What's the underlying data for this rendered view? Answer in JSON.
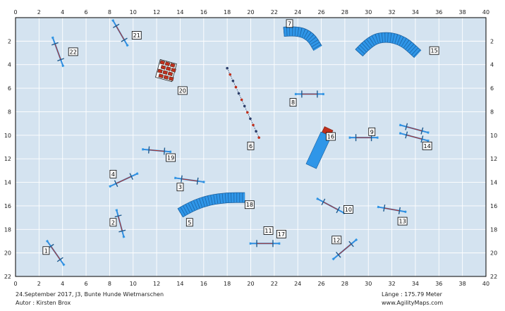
{
  "footer": {
    "event": "24.September 2017, J3, Bunte Hunde Wietmarschen",
    "author": "Autor : Kirsten Brox",
    "length": "Länge : 175.79 Meter",
    "website": "www.AgilityMaps.com"
  },
  "grid": {
    "x_max": 40,
    "y_max": 22,
    "x_ticks": [
      "0",
      "2",
      "4",
      "6",
      "8",
      "10",
      "12",
      "14",
      "16",
      "18",
      "20",
      "22",
      "24",
      "26",
      "28",
      "30",
      "32",
      "34",
      "36",
      "38",
      "40"
    ],
    "y_ticks": [
      "2",
      "4",
      "6",
      "8",
      "10",
      "12",
      "14",
      "16",
      "18",
      "20",
      "22"
    ],
    "colors": {
      "field": "#d4e3f0",
      "grid": "#ffffff",
      "border": "#000000"
    }
  },
  "colors": {
    "bar": "#2f8de0",
    "pole": "#1f5b8f",
    "wing": "#3aa0e8",
    "tunnel": "#2f96e8",
    "tunnel_stroke": "#1a5f9e",
    "red": "#c0301c",
    "weave": "#2c3e6a"
  },
  "obstacles": [
    {
      "id": "1",
      "label": "1",
      "kind": "hurdle",
      "cx": 3.4,
      "cy": 20.0,
      "len": 2.5,
      "angle": 55
    },
    {
      "id": "2",
      "label": "2",
      "kind": "hurdle",
      "cx": 8.9,
      "cy": 17.5,
      "len": 2.4,
      "angle": 75
    },
    {
      "id": "4",
      "label": "4",
      "kind": "hurdle",
      "cx": 9.2,
      "cy": 13.8,
      "len": 2.6,
      "angle": -25
    },
    {
      "id": "3",
      "label": "3",
      "kind": "hurdle",
      "cx": 14.8,
      "cy": 13.8,
      "len": 2.5,
      "angle": 8
    },
    {
      "id": "19",
      "label": "19",
      "kind": "hurdle",
      "cx": 12.0,
      "cy": 11.3,
      "len": 2.4,
      "angle": 5
    },
    {
      "id": "21",
      "label": "21",
      "kind": "hurdle",
      "cx": 8.9,
      "cy": 1.3,
      "len": 2.5,
      "angle": 60
    },
    {
      "id": "22",
      "label": "22",
      "kind": "hurdle",
      "cx": 3.6,
      "cy": 2.9,
      "len": 2.6,
      "angle": 70
    },
    {
      "id": "8",
      "label": "8",
      "kind": "hurdle",
      "cx": 25.0,
      "cy": 6.5,
      "len": 2.4,
      "angle": 0
    },
    {
      "id": "9",
      "label": "9",
      "kind": "hurdle",
      "cx": 29.6,
      "cy": 10.2,
      "len": 2.4,
      "angle": 0
    },
    {
      "id": "14",
      "label": "14",
      "kind": "double",
      "cx": 33.9,
      "cy": 9.8,
      "len": 2.5,
      "angle": 15
    },
    {
      "id": "10",
      "label": "10",
      "kind": "hurdle",
      "cx": 26.8,
      "cy": 16.0,
      "len": 2.6,
      "angle": 28
    },
    {
      "id": "13",
      "label": "13",
      "kind": "hurdle",
      "cx": 32.0,
      "cy": 16.3,
      "len": 2.4,
      "angle": 10
    },
    {
      "id": "17",
      "label": "17",
      "kind": "hurdle",
      "cx": 21.2,
      "cy": 19.2,
      "len": 2.5,
      "angle": 0
    },
    {
      "id": "12",
      "label": "12",
      "kind": "hurdle",
      "cx": 28.0,
      "cy": 19.7,
      "len": 2.6,
      "angle": -40
    },
    {
      "id": "16",
      "label": "16",
      "kind": "aframe",
      "cx": 25.9,
      "cy": 11.0
    },
    {
      "id": "20",
      "label": "20",
      "kind": "wall",
      "cx": 12.8,
      "cy": 4.5
    },
    {
      "id": "6",
      "label": "6",
      "kind": "weave",
      "cx": 19.5,
      "cy": 7.2
    },
    {
      "id": "5",
      "label": "5",
      "kind": "tunnel"
    },
    {
      "id": "7",
      "label": "7",
      "kind": "tunnel"
    },
    {
      "id": "15",
      "label": "15",
      "kind": "tunnel"
    }
  ],
  "tunnels": {
    "5": {
      "path": [
        [
          14.0,
          16.6
        ],
        [
          15.0,
          16.0
        ],
        [
          16.5,
          15.5
        ],
        [
          18.0,
          15.3
        ],
        [
          19.5,
          15.3
        ]
      ],
      "width": 0.8
    },
    "7": {
      "path": [
        [
          22.8,
          1.2
        ],
        [
          24.0,
          1.1
        ],
        [
          25.1,
          1.6
        ],
        [
          25.7,
          2.6
        ]
      ],
      "width": 0.75
    },
    "15": {
      "path": [
        [
          29.2,
          3.0
        ],
        [
          30.2,
          1.9
        ],
        [
          31.6,
          1.6
        ],
        [
          33.0,
          2.0
        ],
        [
          34.2,
          3.1
        ]
      ],
      "width": 0.8
    }
  },
  "labels": [
    {
      "text": "1",
      "x": 2.6,
      "y": 19.8
    },
    {
      "text": "2",
      "x": 8.3,
      "y": 17.4
    },
    {
      "text": "3",
      "x": 14.0,
      "y": 14.4
    },
    {
      "text": "4",
      "x": 8.3,
      "y": 13.3
    },
    {
      "text": "5",
      "x": 14.8,
      "y": 17.4
    },
    {
      "text": "6",
      "x": 20.0,
      "y": 10.9
    },
    {
      "text": "7",
      "x": 23.3,
      "y": 0.5
    },
    {
      "text": "8",
      "x": 23.6,
      "y": 7.2
    },
    {
      "text": "9",
      "x": 30.3,
      "y": 9.7
    },
    {
      "text": "10",
      "x": 28.3,
      "y": 16.3
    },
    {
      "text": "12",
      "x": 27.3,
      "y": 18.9
    },
    {
      "text": "13",
      "x": 32.9,
      "y": 17.3
    },
    {
      "text": "14",
      "x": 35.0,
      "y": 10.9
    },
    {
      "text": "15",
      "x": 35.6,
      "y": 2.8
    },
    {
      "text": "16",
      "x": 26.8,
      "y": 10.1
    },
    {
      "text": "17",
      "x": 22.6,
      "y": 18.4
    },
    {
      "text": "18",
      "x": 19.9,
      "y": 15.9
    },
    {
      "text": "19",
      "x": 13.2,
      "y": 11.9
    },
    {
      "text": "20",
      "x": 14.2,
      "y": 6.2
    },
    {
      "text": "21",
      "x": 10.3,
      "y": 1.5
    },
    {
      "text": "22",
      "x": 4.9,
      "y": 2.9
    },
    {
      "text": "11",
      "x": 21.5,
      "y": 18.1
    }
  ]
}
